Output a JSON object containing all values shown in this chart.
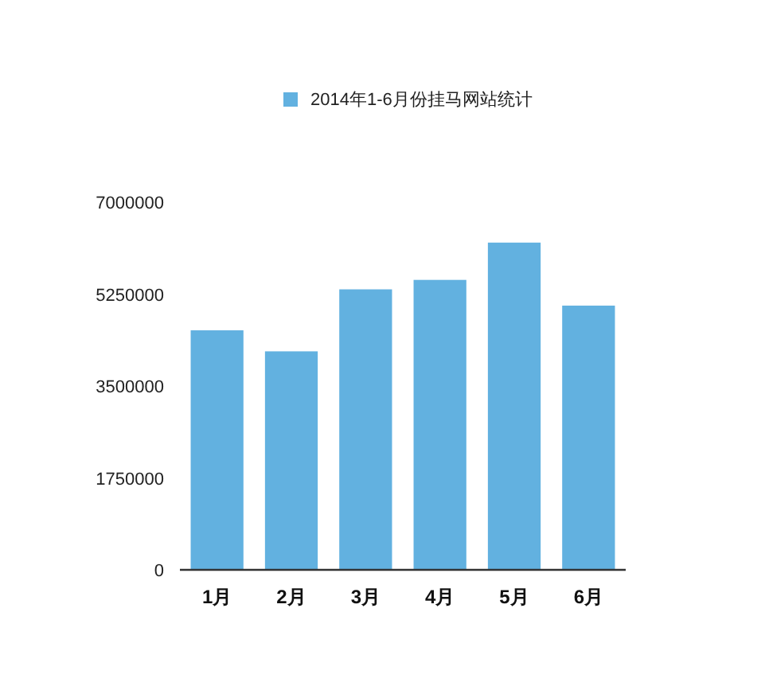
{
  "chart_data": {
    "type": "bar",
    "categories": [
      "1月",
      "2月",
      "3月",
      "4月",
      "5月",
      "6月"
    ],
    "series": [
      {
        "name": "2014年1-6月份挂马网站统计",
        "color": "#62b1e0",
        "values": [
          4560000,
          4160000,
          5340000,
          5520000,
          6230000,
          5030000
        ]
      }
    ],
    "ylim": [
      0,
      7000000
    ],
    "yticks": [
      0,
      1750000,
      3500000,
      5250000,
      7000000
    ],
    "legend": "top"
  }
}
